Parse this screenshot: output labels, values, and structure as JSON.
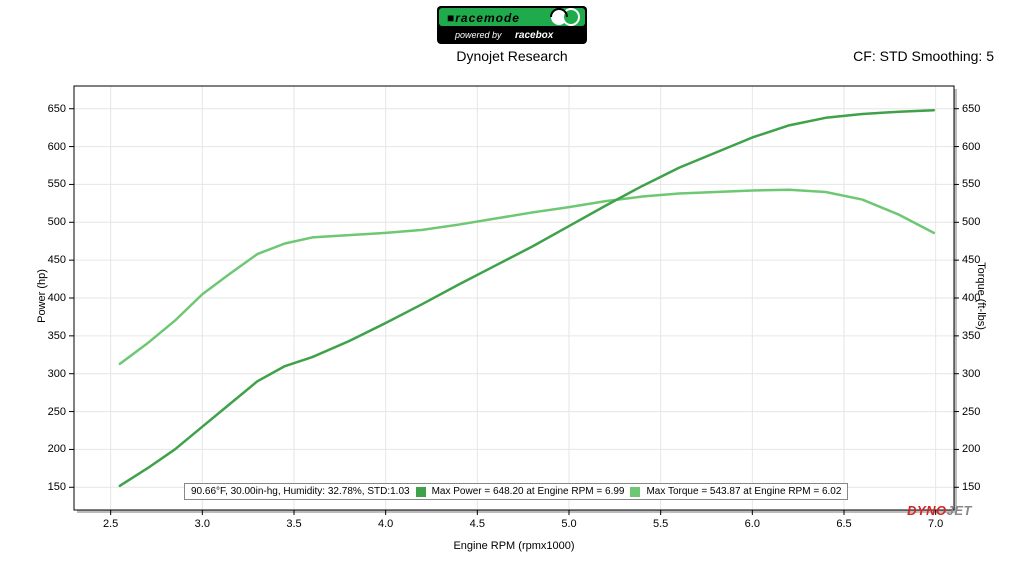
{
  "logo": {
    "bg_color": "#000000",
    "accent_color": "#1faa4b",
    "text_top": "racemode",
    "text_bottom": "powered by racebox"
  },
  "header": {
    "title": "Dynojet Research",
    "smoothing": "CF: STD Smoothing: 5"
  },
  "chart": {
    "type": "line-dual-y",
    "background_color": "#ffffff",
    "grid_color": "#e6e6e6",
    "axis_color": "#000000",
    "plot_border_shadow": "#bcbcbc",
    "xlabel": "Engine RPM (rpmx1000)",
    "ylabel_left": "Power (hp)",
    "ylabel_right": "Torque (ft-lbs)",
    "xlim": [
      2.3,
      7.1
    ],
    "ylim_left": [
      120,
      680
    ],
    "ylim_right": [
      120,
      680
    ],
    "xticks": [
      2.5,
      3.0,
      3.5,
      4.0,
      4.5,
      5.0,
      5.5,
      6.0,
      6.5,
      7.0
    ],
    "yticks_left": [
      150,
      200,
      250,
      300,
      350,
      400,
      450,
      500,
      550,
      600,
      650
    ],
    "yticks_right": [
      150,
      200,
      250,
      300,
      350,
      400,
      450,
      500,
      550,
      600,
      650
    ],
    "series": {
      "power": {
        "color": "#3fa24a",
        "width": 2.5,
        "x": [
          2.55,
          2.7,
          2.85,
          3.0,
          3.15,
          3.3,
          3.45,
          3.6,
          3.8,
          4.0,
          4.2,
          4.4,
          4.6,
          4.8,
          5.0,
          5.2,
          5.4,
          5.6,
          5.8,
          6.0,
          6.2,
          6.4,
          6.6,
          6.8,
          6.99
        ],
        "y": [
          152,
          175,
          200,
          230,
          260,
          290,
          310,
          322,
          343,
          367,
          392,
          418,
          443,
          468,
          495,
          522,
          548,
          572,
          592,
          612,
          628,
          638,
          643,
          646,
          648
        ]
      },
      "torque": {
        "color": "#6ec873",
        "width": 2.5,
        "x": [
          2.55,
          2.7,
          2.85,
          3.0,
          3.15,
          3.3,
          3.45,
          3.6,
          3.8,
          4.0,
          4.2,
          4.4,
          4.6,
          4.8,
          5.0,
          5.2,
          5.4,
          5.6,
          5.8,
          6.0,
          6.2,
          6.4,
          6.6,
          6.8,
          6.99
        ],
        "y": [
          313,
          340,
          370,
          405,
          432,
          458,
          472,
          480,
          483,
          486,
          490,
          497,
          505,
          513,
          520,
          528,
          534,
          538,
          540,
          542,
          543,
          540,
          530,
          510,
          486
        ]
      }
    },
    "legend": {
      "conditions": "90.66°F, 30.00in-hg, Humidity: 32.78%, STD:1.03",
      "power": "Max Power = 648.20 at Engine RPM = 6.99",
      "torque": "Max Torque = 543.87 at Engine RPM = 6.02"
    },
    "watermark": {
      "text_a": "DYNO",
      "text_b": "JET",
      "color_a": "#d02626",
      "color_b": "#888888"
    }
  }
}
